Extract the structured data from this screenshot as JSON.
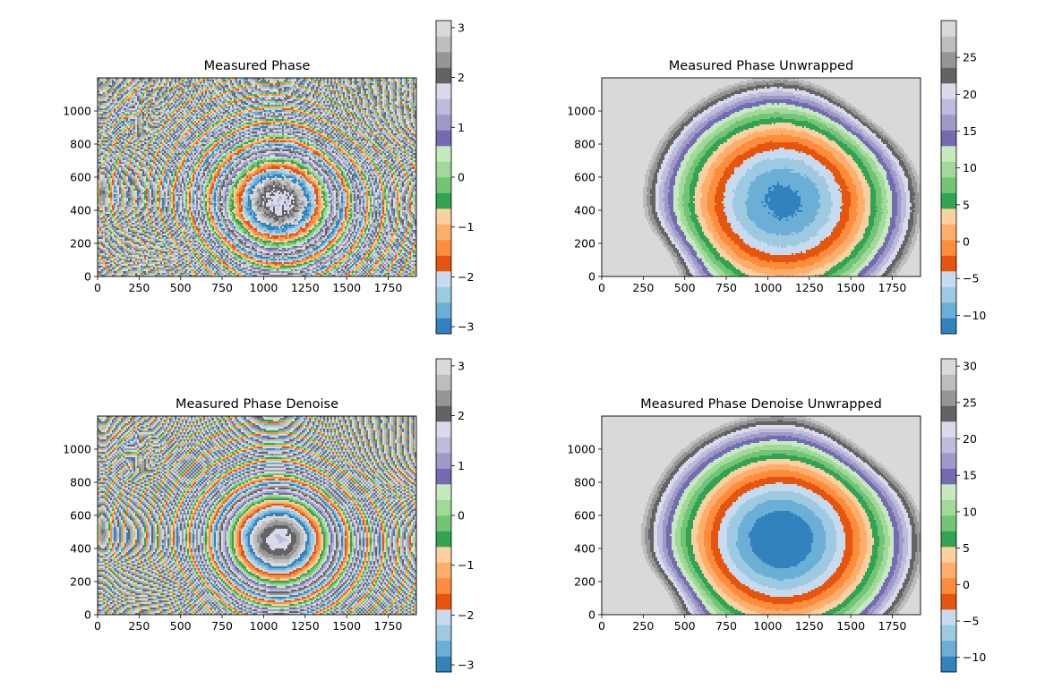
{
  "palette": {
    "tab20c": [
      "#3182bd",
      "#6baed6",
      "#9ecae1",
      "#c6dbef",
      "#e6550d",
      "#fd8d3c",
      "#fdae6b",
      "#fdd0a2",
      "#31a354",
      "#74c476",
      "#a1d99b",
      "#c7e9c0",
      "#756bb1",
      "#9e9ac8",
      "#bcbddc",
      "#dadaeb",
      "#636363",
      "#969696",
      "#bdbdbd",
      "#d9d9d9"
    ]
  },
  "chart_data": [
    {
      "type": "heatmap",
      "title": "Measured Phase",
      "xlim": [
        0,
        1920
      ],
      "ylim": [
        0,
        1200
      ],
      "xticks": [
        0,
        250,
        500,
        750,
        1000,
        1250,
        1500,
        1750
      ],
      "yticks": [
        0,
        200,
        400,
        600,
        800,
        1000
      ],
      "colormap": "tab20c",
      "clim": [
        -3.14159,
        3.14159
      ],
      "colorbar_ticks": [
        -3,
        -2,
        -1,
        0,
        1,
        2,
        3
      ],
      "colorbar_tick_labels": [
        "−3",
        "−2",
        "−1",
        "0",
        "1",
        "2",
        "3"
      ],
      "pattern": "wrapped",
      "description_level_field": "wrapped phase fringes around a central bowl near (1100, 450)"
    },
    {
      "type": "heatmap",
      "title": "Measured Phase Unwrapped",
      "xlim": [
        0,
        1920
      ],
      "ylim": [
        0,
        1200
      ],
      "xticks": [
        0,
        250,
        500,
        750,
        1000,
        1250,
        1500,
        1750
      ],
      "yticks": [
        0,
        200,
        400,
        600,
        800,
        1000
      ],
      "colormap": "tab20c",
      "clim": [
        -12.5,
        30
      ],
      "colorbar_ticks": [
        -10,
        -5,
        0,
        5,
        10,
        15,
        20,
        25
      ],
      "colorbar_tick_labels": [
        "−10",
        "−5",
        "0",
        "5",
        "10",
        "15",
        "20",
        "25"
      ],
      "pattern": "unwrapped"
    },
    {
      "type": "heatmap",
      "title": "Measured Phase Denoise",
      "xlim": [
        0,
        1920
      ],
      "ylim": [
        0,
        1200
      ],
      "xticks": [
        0,
        250,
        500,
        750,
        1000,
        1250,
        1500,
        1750
      ],
      "yticks": [
        0,
        200,
        400,
        600,
        800,
        1000
      ],
      "colormap": "tab20c",
      "clim": [
        -3.14159,
        3.14159
      ],
      "colorbar_ticks": [
        -3,
        -2,
        -1,
        0,
        1,
        2,
        3
      ],
      "colorbar_tick_labels": [
        "−3",
        "−2",
        "−1",
        "0",
        "1",
        "2",
        "3"
      ],
      "pattern": "wrapped"
    },
    {
      "type": "heatmap",
      "title": "Measured Phase Denoise Unwrapped",
      "xlim": [
        0,
        1920
      ],
      "ylim": [
        0,
        1200
      ],
      "xticks": [
        0,
        250,
        500,
        750,
        1000,
        1250,
        1500,
        1750
      ],
      "yticks": [
        0,
        200,
        400,
        600,
        800,
        1000
      ],
      "colormap": "tab20c",
      "clim": [
        -12,
        31
      ],
      "colorbar_ticks": [
        -10,
        -5,
        0,
        5,
        10,
        15,
        20,
        25,
        30
      ],
      "colorbar_tick_labels": [
        "−10",
        "−5",
        "0",
        "5",
        "10",
        "15",
        "20",
        "25",
        "30"
      ],
      "pattern": "unwrapped_denoise"
    }
  ]
}
